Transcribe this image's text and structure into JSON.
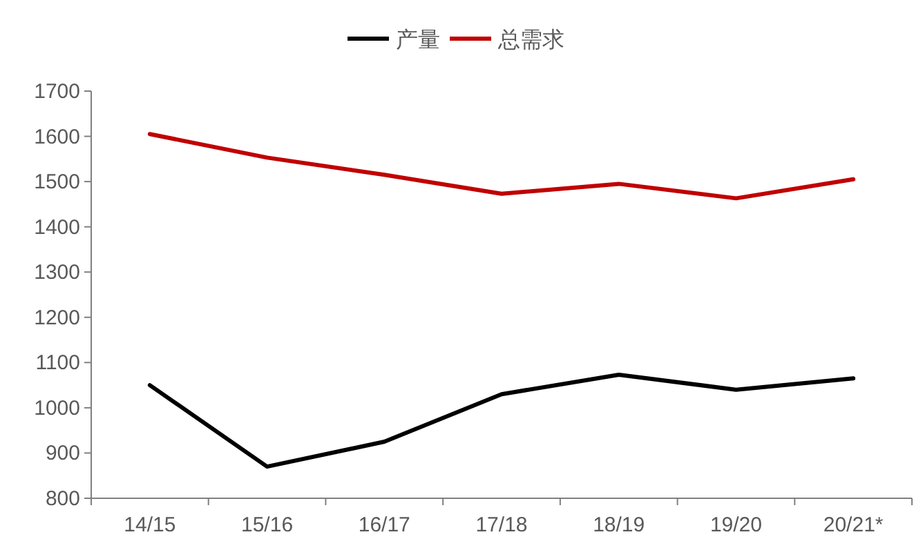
{
  "chart_data": {
    "type": "line",
    "categories": [
      "14/15",
      "15/16",
      "16/17",
      "17/18",
      "18/19",
      "19/20",
      "20/21*"
    ],
    "series": [
      {
        "name": "产量",
        "color": "#000000",
        "values": [
          1050,
          870,
          925,
          1030,
          1073,
          1040,
          1065
        ]
      },
      {
        "name": "总需求",
        "color": "#c00000",
        "values": [
          1605,
          1553,
          1515,
          1473,
          1495,
          1463,
          1505
        ]
      }
    ],
    "ylim": [
      800,
      1700
    ],
    "yticks": [
      800,
      900,
      1000,
      1100,
      1200,
      1300,
      1400,
      1500,
      1600,
      1700
    ],
    "legend": "top",
    "grid": false,
    "marker": "none",
    "line_style": "solid"
  }
}
